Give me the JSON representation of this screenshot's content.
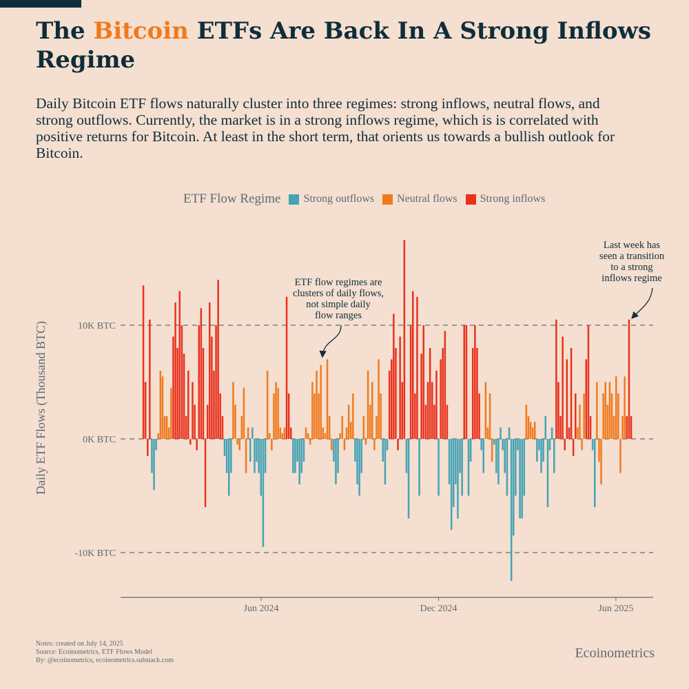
{
  "header": {
    "title_pre": "The ",
    "title_highlight": "Bitcoin",
    "title_post": " ETFs Are Back In A Strong Inflows Regime",
    "subtitle": "Daily Bitcoin ETF flows naturally cluster into three regimes: strong inflows, neutral flows, and strong outflows. Currently, the market is in a strong inflows regime, which is is correlated with positive returns for Bitcoin. At least in the short term, that orients us towards a bullish outlook for Bitcoin."
  },
  "colors": {
    "accent": "#f07a1e",
    "outflows": "#45a3b5",
    "neutral": "#f07a1e",
    "inflows": "#e8321e",
    "text": "#0f2d3a"
  },
  "legend": {
    "title": "ETF Flow Regime",
    "items": [
      {
        "key": "O",
        "label": "Strong outflows"
      },
      {
        "key": "N",
        "label": "Neutral flows"
      },
      {
        "key": "I",
        "label": "Strong inflows"
      }
    ]
  },
  "chart_data": {
    "type": "bar",
    "ylabel": "Daily ETF Flows (Thousand BTC)",
    "ylim": [
      -14,
      18.5
    ],
    "yticks": [
      {
        "value": 10,
        "label": "10K BTC"
      },
      {
        "value": 0,
        "label": "0K BTC"
      },
      {
        "value": -10,
        "label": "-10K BTC"
      }
    ],
    "xticks": [
      {
        "label": "Jun 2024",
        "pos": 0.264
      },
      {
        "label": "Dec 2024",
        "pos": 0.597
      },
      {
        "label": "Jun 2025",
        "pos": 0.93
      }
    ],
    "grid": "dashed horizontal at ticks",
    "legend_position": "top",
    "bars": [
      [
        13.5,
        "I"
      ],
      [
        5,
        "I"
      ],
      [
        -1.5,
        "I"
      ],
      [
        10.5,
        "I"
      ],
      [
        -3,
        "O"
      ],
      [
        -4.5,
        "O"
      ],
      [
        -1,
        "O"
      ],
      [
        0.5,
        "N"
      ],
      [
        6,
        "N"
      ],
      [
        5.5,
        "N"
      ],
      [
        2,
        "N"
      ],
      [
        2,
        "N"
      ],
      [
        1,
        "N"
      ],
      [
        4.5,
        "N"
      ],
      [
        9,
        "I"
      ],
      [
        12,
        "I"
      ],
      [
        8,
        "I"
      ],
      [
        13,
        "I"
      ],
      [
        10,
        "I"
      ],
      [
        7.5,
        "I"
      ],
      [
        2,
        "I"
      ],
      [
        6,
        "I"
      ],
      [
        -0.5,
        "I"
      ],
      [
        5,
        "I"
      ],
      [
        3,
        "I"
      ],
      [
        -1,
        "I"
      ],
      [
        10,
        "I"
      ],
      [
        11.5,
        "I"
      ],
      [
        8,
        "I"
      ],
      [
        -6,
        "I"
      ],
      [
        3,
        "I"
      ],
      [
        12,
        "I"
      ],
      [
        9,
        "I"
      ],
      [
        6,
        "I"
      ],
      [
        10,
        "I"
      ],
      [
        14,
        "I"
      ],
      [
        4,
        "I"
      ],
      [
        2,
        "I"
      ],
      [
        -1.5,
        "O"
      ],
      [
        -3,
        "O"
      ],
      [
        -5,
        "O"
      ],
      [
        -3,
        "O"
      ],
      [
        5,
        "N"
      ],
      [
        3,
        "N"
      ],
      [
        -0.5,
        "N"
      ],
      [
        -1,
        "N"
      ],
      [
        2,
        "N"
      ],
      [
        4.5,
        "N"
      ],
      [
        -3,
        "N"
      ],
      [
        1,
        "N"
      ],
      [
        -2,
        "O"
      ],
      [
        1,
        "O"
      ],
      [
        -3,
        "O"
      ],
      [
        -2,
        "O"
      ],
      [
        -3,
        "O"
      ],
      [
        -5,
        "O"
      ],
      [
        -9.5,
        "O"
      ],
      [
        -3,
        "O"
      ],
      [
        6,
        "N"
      ],
      [
        0.5,
        "N"
      ],
      [
        -1,
        "N"
      ],
      [
        4,
        "N"
      ],
      [
        5,
        "N"
      ],
      [
        4.5,
        "N"
      ],
      [
        1,
        "N"
      ],
      [
        0.5,
        "N"
      ],
      [
        1,
        "N"
      ],
      [
        12.5,
        "I"
      ],
      [
        4,
        "I"
      ],
      [
        1,
        "I"
      ],
      [
        -3,
        "O"
      ],
      [
        -3,
        "O"
      ],
      [
        -2,
        "O"
      ],
      [
        -4,
        "O"
      ],
      [
        -3,
        "O"
      ],
      [
        -2,
        "O"
      ],
      [
        1,
        "N"
      ],
      [
        0.5,
        "N"
      ],
      [
        -0.5,
        "N"
      ],
      [
        5,
        "N"
      ],
      [
        4,
        "N"
      ],
      [
        6,
        "N"
      ],
      [
        4,
        "N"
      ],
      [
        6.5,
        "N"
      ],
      [
        1,
        "N"
      ],
      [
        0.5,
        "N"
      ],
      [
        7,
        "N"
      ],
      [
        2,
        "N"
      ],
      [
        -1,
        "N"
      ],
      [
        -2,
        "O"
      ],
      [
        -4,
        "O"
      ],
      [
        -3,
        "O"
      ],
      [
        0.5,
        "N"
      ],
      [
        2,
        "N"
      ],
      [
        -1,
        "N"
      ],
      [
        1,
        "N"
      ],
      [
        3,
        "N"
      ],
      [
        1.5,
        "N"
      ],
      [
        4,
        "N"
      ],
      [
        -2,
        "O"
      ],
      [
        -4,
        "O"
      ],
      [
        -5,
        "O"
      ],
      [
        -3,
        "O"
      ],
      [
        2,
        "N"
      ],
      [
        -0.5,
        "N"
      ],
      [
        6,
        "N"
      ],
      [
        3,
        "N"
      ],
      [
        5,
        "N"
      ],
      [
        -1,
        "N"
      ],
      [
        2,
        "N"
      ],
      [
        7,
        "N"
      ],
      [
        4,
        "N"
      ],
      [
        -2,
        "O"
      ],
      [
        -4,
        "O"
      ],
      [
        -1,
        "O"
      ],
      [
        6,
        "I"
      ],
      [
        7,
        "I"
      ],
      [
        11,
        "I"
      ],
      [
        8,
        "I"
      ],
      [
        -1,
        "I"
      ],
      [
        9,
        "I"
      ],
      [
        5,
        "I"
      ],
      [
        17.5,
        "I"
      ],
      [
        -3,
        "O"
      ],
      [
        -7,
        "O"
      ],
      [
        10,
        "I"
      ],
      [
        13,
        "I"
      ],
      [
        4,
        "I"
      ],
      [
        12.5,
        "I"
      ],
      [
        -5,
        "O"
      ],
      [
        7.5,
        "I"
      ],
      [
        10,
        "I"
      ],
      [
        3,
        "I"
      ],
      [
        5,
        "I"
      ],
      [
        8,
        "I"
      ],
      [
        5,
        "I"
      ],
      [
        3,
        "I"
      ],
      [
        6,
        "I"
      ],
      [
        -5,
        "O"
      ],
      [
        7,
        "I"
      ],
      [
        8,
        "I"
      ],
      [
        9.5,
        "I"
      ],
      [
        3,
        "I"
      ],
      [
        -4,
        "O"
      ],
      [
        -8,
        "O"
      ],
      [
        -6,
        "O"
      ],
      [
        -4,
        "O"
      ],
      [
        -7,
        "O"
      ],
      [
        -3,
        "O"
      ],
      [
        -5,
        "O"
      ],
      [
        10,
        "I"
      ],
      [
        10,
        "I"
      ],
      [
        -5,
        "O"
      ],
      [
        -2,
        "O"
      ],
      [
        8,
        "I"
      ],
      [
        10,
        "I"
      ],
      [
        8,
        "I"
      ],
      [
        4,
        "I"
      ],
      [
        -1,
        "O"
      ],
      [
        -3,
        "O"
      ],
      [
        5,
        "N"
      ],
      [
        1,
        "N"
      ],
      [
        4,
        "N"
      ],
      [
        -2,
        "N"
      ],
      [
        -0.5,
        "O"
      ],
      [
        -3,
        "O"
      ],
      [
        -4,
        "O"
      ],
      [
        1,
        "O"
      ],
      [
        -1,
        "O"
      ],
      [
        -3,
        "O"
      ],
      [
        -5,
        "O"
      ],
      [
        1,
        "O"
      ],
      [
        -12.5,
        "O"
      ],
      [
        -8.5,
        "O"
      ],
      [
        -5,
        "O"
      ],
      [
        -1,
        "O"
      ],
      [
        -7,
        "O"
      ],
      [
        -7,
        "O"
      ],
      [
        -5,
        "O"
      ],
      [
        3,
        "N"
      ],
      [
        2,
        "N"
      ],
      [
        1.5,
        "N"
      ],
      [
        1,
        "N"
      ],
      [
        1.5,
        "N"
      ],
      [
        -2,
        "O"
      ],
      [
        -1,
        "O"
      ],
      [
        -3,
        "O"
      ],
      [
        -2,
        "O"
      ],
      [
        2,
        "O"
      ],
      [
        -6,
        "O"
      ],
      [
        -1,
        "O"
      ],
      [
        1,
        "O"
      ],
      [
        -3,
        "O"
      ],
      [
        10.5,
        "I"
      ],
      [
        5,
        "I"
      ],
      [
        2,
        "I"
      ],
      [
        9,
        "I"
      ],
      [
        -1,
        "I"
      ],
      [
        7,
        "I"
      ],
      [
        1,
        "I"
      ],
      [
        8,
        "I"
      ],
      [
        -1.5,
        "I"
      ],
      [
        4,
        "I"
      ],
      [
        1,
        "N"
      ],
      [
        3,
        "N"
      ],
      [
        -1,
        "N"
      ],
      [
        4,
        "N"
      ],
      [
        7,
        "I"
      ],
      [
        10,
        "I"
      ],
      [
        2,
        "I"
      ],
      [
        -1,
        "O"
      ],
      [
        -6,
        "O"
      ],
      [
        5,
        "N"
      ],
      [
        -2,
        "N"
      ],
      [
        -4,
        "N"
      ],
      [
        4,
        "N"
      ],
      [
        5,
        "N"
      ],
      [
        3,
        "N"
      ],
      [
        5,
        "N"
      ],
      [
        4,
        "N"
      ],
      [
        2,
        "N"
      ],
      [
        5.5,
        "N"
      ],
      [
        4,
        "N"
      ],
      [
        -3,
        "N"
      ],
      [
        2,
        "N"
      ],
      [
        5.5,
        "N"
      ],
      [
        2,
        "I"
      ],
      [
        10.5,
        "I"
      ],
      [
        2,
        "I"
      ]
    ],
    "annotations": [
      "ETF flow regimes are clusters of daily flows, not simple daily flow ranges",
      "Last week has seen a transition to a strong inflows regime"
    ]
  },
  "annotation_lines": {
    "a1": [
      "ETF flow regimes are",
      "clusters of daily flows,",
      "not simple daily",
      "flow ranges"
    ],
    "a2": [
      "Last week has",
      "seen a transition",
      "to a strong",
      "inflows regime"
    ]
  },
  "footer": {
    "notes": "Notes: created on July 14, 2025",
    "source": "Source: Ecoinometrics, ETF Flows Model",
    "by": "By: @ecoinometrics, ecoinometrics.substack.com",
    "brand": "Ecoinometrics"
  }
}
